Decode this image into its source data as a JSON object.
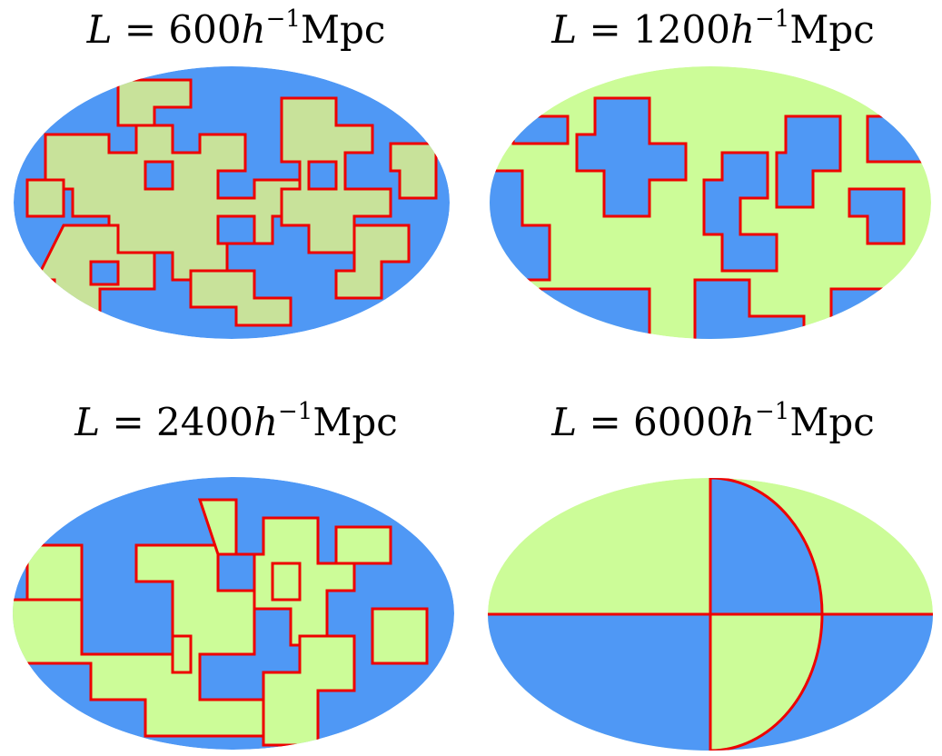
{
  "colors": {
    "blue": "#4f98f5",
    "green": "#ccfc98",
    "green_dark": "#c8e29a",
    "red": "#ee0000"
  },
  "panels": [
    {
      "L": "L",
      "eq": " = ",
      "value": "600",
      "h": "h",
      "exp": "−1",
      "unit": "Mpc"
    },
    {
      "L": "L",
      "eq": " = ",
      "value": "1200",
      "h": "h",
      "exp": "−1",
      "unit": "Mpc"
    },
    {
      "L": "L",
      "eq": " = ",
      "value": "2400",
      "h": "h",
      "exp": "−1",
      "unit": "Mpc"
    },
    {
      "L": "L",
      "eq": " = ",
      "value": "6000",
      "h": "h",
      "exp": "−1",
      "unit": "Mpc"
    }
  ]
}
